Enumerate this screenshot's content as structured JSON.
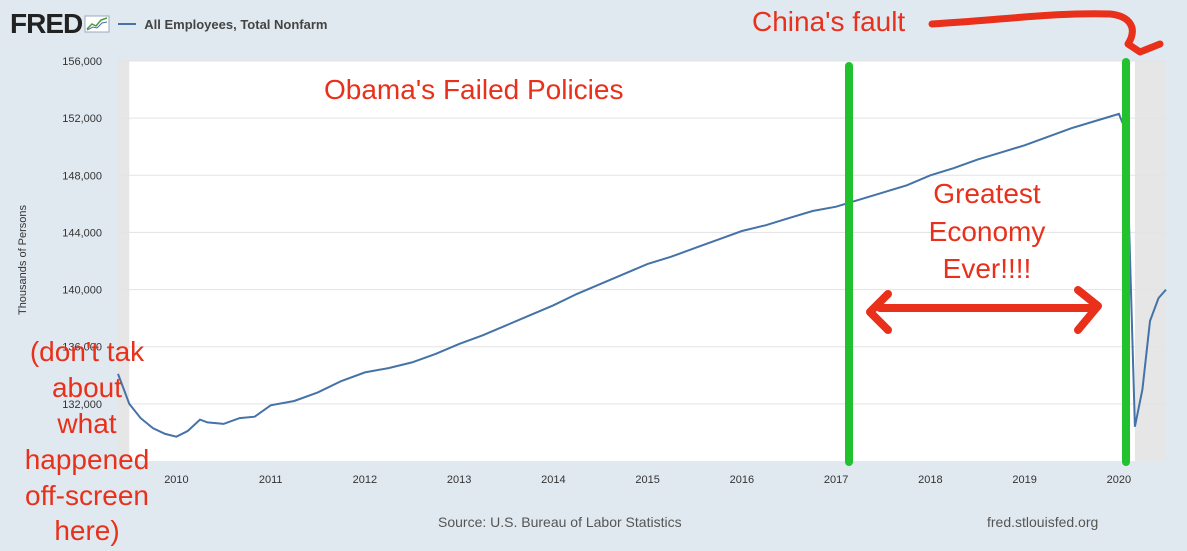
{
  "header": {
    "logo": "FRED",
    "chart_icon": "line-chart-icon",
    "series_name": "All Employees, Total Nonfarm"
  },
  "footer": {
    "source": "Source: U.S. Bureau of Labor Statistics",
    "site": "fred.stlouisfed.org"
  },
  "colors": {
    "background": "#e1e9f0",
    "plot": "#ffffff",
    "recession": "#e6e6e6",
    "line": "#4572a7",
    "annotation": "#e8301a",
    "marker": "#22c22e"
  },
  "chart_data": {
    "type": "line",
    "title": "",
    "xlabel": "",
    "ylabel": "Thousands of Persons",
    "x_ticks": [
      "2010",
      "2011",
      "2012",
      "2013",
      "2014",
      "2015",
      "2016",
      "2017",
      "2018",
      "2019",
      "2020"
    ],
    "y_ticks": [
      "132,000",
      "136,000",
      "140,000",
      "144,000",
      "148,000",
      "152,000",
      "156,000"
    ],
    "ylim": [
      128000,
      156000
    ],
    "xlim": [
      2009.38,
      2020.5
    ],
    "recession_shading": [
      [
        2009.38,
        2009.5
      ],
      [
        2020.17,
        2020.5
      ]
    ],
    "series": [
      {
        "name": "All Employees, Total Nonfarm",
        "x": [
          2009.38,
          2009.5,
          2009.62,
          2009.75,
          2009.88,
          2010.0,
          2010.12,
          2010.25,
          2010.33,
          2010.5,
          2010.67,
          2010.83,
          2011.0,
          2011.25,
          2011.5,
          2011.75,
          2012.0,
          2012.25,
          2012.5,
          2012.75,
          2013.0,
          2013.25,
          2013.5,
          2013.75,
          2014.0,
          2014.25,
          2014.5,
          2014.75,
          2015.0,
          2015.25,
          2015.5,
          2015.75,
          2016.0,
          2016.25,
          2016.5,
          2016.75,
          2017.0,
          2017.25,
          2017.5,
          2017.75,
          2018.0,
          2018.25,
          2018.5,
          2018.75,
          2019.0,
          2019.25,
          2019.5,
          2019.75,
          2020.0,
          2020.08,
          2020.17,
          2020.25,
          2020.33,
          2020.42,
          2020.5
        ],
        "values": [
          134100,
          132000,
          131000,
          130300,
          129900,
          129700,
          130100,
          130900,
          130700,
          130600,
          131000,
          131100,
          131900,
          132200,
          132800,
          133600,
          134200,
          134500,
          134900,
          135500,
          136200,
          136800,
          137500,
          138200,
          138900,
          139700,
          140400,
          141100,
          141800,
          142300,
          142900,
          143500,
          144100,
          144500,
          145000,
          145500,
          145800,
          146300,
          146800,
          147300,
          148000,
          148500,
          149100,
          149600,
          150100,
          150700,
          151300,
          151800,
          152300,
          151000,
          130400,
          133000,
          137800,
          139400,
          140000
        ]
      }
    ],
    "annotations": [
      "Obama's Failed Policies",
      "China's fault",
      "Greatest",
      "Economy",
      "Ever!!!!",
      "(don't tak",
      "about",
      "what",
      "happened",
      "off-screen",
      "here)"
    ]
  }
}
